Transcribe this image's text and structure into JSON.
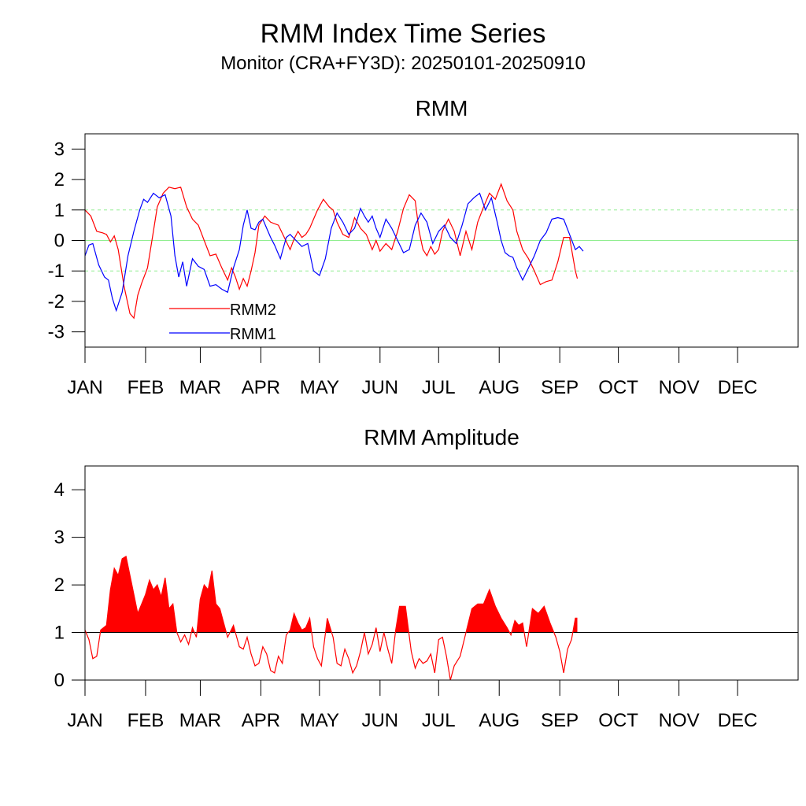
{
  "title": "RMM Index Time Series",
  "subtitle": "Monitor (CRA+FY3D): 20250101-20250910",
  "months": [
    "JAN",
    "FEB",
    "MAR",
    "APR",
    "MAY",
    "JUN",
    "JUL",
    "AUG",
    "SEP",
    "OCT",
    "NOV",
    "DEC"
  ],
  "colors": {
    "rmm1": "#0000ff",
    "rmm2": "#ff0000",
    "amplitude": "#ff0000",
    "zero_line": "#90ee90",
    "threshold_line": "#000000"
  },
  "chart_data": [
    {
      "type": "line",
      "title": "RMM",
      "x_unit": "day of year 2025 (1 = Jan 1)",
      "xlim": [
        1,
        366
      ],
      "ylim": [
        -3.5,
        3.5
      ],
      "yticks": [
        "3",
        "2",
        "1",
        "0",
        "-1",
        "-2",
        "-3"
      ],
      "yticks_values": [
        3,
        2,
        1,
        0,
        -1,
        -2,
        -3
      ],
      "reference_lines": [
        {
          "y": 0,
          "style": "solid",
          "color": "#90ee90"
        },
        {
          "y": 1,
          "style": "dashed",
          "color": "#90ee90"
        },
        {
          "y": -1,
          "style": "dashed",
          "color": "#90ee90"
        }
      ],
      "legend_placement": "lower-left",
      "series": [
        {
          "name": "RMM2",
          "color": "#ff0000",
          "x": [
            1,
            4,
            7,
            10,
            12,
            14,
            16,
            18,
            21,
            24,
            26,
            28,
            30,
            33,
            36,
            38,
            41,
            44,
            47,
            50,
            53,
            56,
            59,
            62,
            65,
            68,
            71,
            74,
            76,
            78,
            80,
            82,
            84,
            86,
            88,
            90,
            93,
            96,
            100,
            103,
            106,
            108,
            110,
            112,
            114,
            116,
            118,
            120,
            123,
            126,
            128,
            130,
            133,
            136,
            139,
            142,
            145,
            148,
            150,
            152,
            155,
            158,
            161,
            164,
            167,
            170,
            172,
            174,
            176,
            178,
            180,
            182,
            184,
            187,
            190,
            193,
            196,
            199,
            202,
            205,
            208,
            211,
            214,
            217,
            220,
            222,
            225,
            228,
            231,
            234,
            237,
            240,
            243,
            246,
            249,
            252,
            253
          ],
          "y": [
            1.0,
            0.8,
            0.3,
            0.25,
            0.2,
            -0.05,
            0.15,
            -0.3,
            -1.5,
            -2.4,
            -2.55,
            -1.8,
            -1.4,
            -0.9,
            0.3,
            1.1,
            1.55,
            1.75,
            1.7,
            1.75,
            1.1,
            0.7,
            0.5,
            0.0,
            -0.5,
            -0.45,
            -0.9,
            -1.3,
            -0.9,
            -1.2,
            -1.6,
            -1.25,
            -1.5,
            -1.0,
            -0.4,
            0.5,
            0.8,
            0.6,
            0.5,
            0.1,
            -0.3,
            0.05,
            0.3,
            0.1,
            0.2,
            0.4,
            0.7,
            1.0,
            1.35,
            1.1,
            1.0,
            0.6,
            0.2,
            0.1,
            0.75,
            0.4,
            0.2,
            -0.3,
            0.0,
            -0.35,
            -0.1,
            -0.3,
            0.3,
            1.05,
            1.5,
            1.3,
            0.3,
            -0.3,
            -0.5,
            -0.2,
            -0.45,
            -0.3,
            0.3,
            0.7,
            0.3,
            -0.5,
            0.3,
            -0.3,
            0.6,
            1.1,
            1.55,
            1.35,
            1.85,
            1.3,
            1.0,
            0.3,
            -0.3,
            -0.6,
            -1.0,
            -1.45,
            -1.35,
            -1.3,
            -0.7,
            0.1,
            0.1,
            -1.0,
            -1.25
          ]
        },
        {
          "name": "RMM1",
          "color": "#0000ff",
          "x": [
            1,
            3,
            5,
            8,
            11,
            13,
            15,
            17,
            20,
            23,
            26,
            29,
            31,
            33,
            36,
            39,
            42,
            45,
            47,
            49,
            51,
            53,
            56,
            59,
            62,
            65,
            68,
            71,
            74,
            77,
            80,
            82,
            84,
            86,
            88,
            90,
            92,
            94,
            96,
            98,
            101,
            104,
            106,
            109,
            112,
            115,
            118,
            121,
            124,
            127,
            130,
            133,
            136,
            139,
            142,
            144,
            146,
            148,
            150,
            152,
            155,
            158,
            161,
            164,
            167,
            170,
            173,
            176,
            179,
            182,
            185,
            188,
            191,
            194,
            197,
            200,
            203,
            206,
            209,
            212,
            214,
            216,
            218,
            220,
            222,
            225,
            228,
            231,
            234,
            237,
            240,
            243,
            246,
            249,
            252,
            254,
            256
          ],
          "y": [
            -0.5,
            -0.15,
            -0.1,
            -0.8,
            -1.2,
            -1.3,
            -1.9,
            -2.3,
            -1.7,
            -0.5,
            0.3,
            1.0,
            1.35,
            1.25,
            1.55,
            1.4,
            1.5,
            0.8,
            -0.5,
            -1.2,
            -0.7,
            -1.5,
            -0.6,
            -0.85,
            -0.95,
            -1.5,
            -1.45,
            -1.6,
            -1.7,
            -0.9,
            -0.3,
            0.5,
            1.0,
            0.4,
            0.35,
            0.6,
            0.7,
            0.4,
            0.1,
            -0.15,
            -0.6,
            0.1,
            0.2,
            0.0,
            -0.2,
            -0.1,
            -1.0,
            -1.15,
            -0.6,
            0.4,
            0.9,
            0.6,
            0.2,
            0.4,
            1.05,
            0.8,
            0.6,
            0.8,
            0.4,
            0.1,
            0.7,
            0.4,
            0.0,
            -0.4,
            -0.3,
            0.5,
            0.9,
            0.6,
            -0.1,
            0.3,
            0.5,
            0.1,
            -0.1,
            0.5,
            1.2,
            1.4,
            1.55,
            1.0,
            1.4,
            0.6,
            0.0,
            -0.4,
            -0.5,
            -0.55,
            -0.9,
            -1.3,
            -0.9,
            -0.5,
            0.0,
            0.25,
            0.7,
            0.75,
            0.7,
            0.2,
            -0.3,
            -0.2,
            -0.35
          ]
        }
      ]
    },
    {
      "type": "area",
      "title": "RMM Amplitude",
      "x_unit": "day of year 2025 (1 = Jan 1)",
      "xlim": [
        1,
        366
      ],
      "ylim": [
        0,
        4.5
      ],
      "yticks": [
        "4",
        "3",
        "2",
        "1",
        "0"
      ],
      "yticks_values": [
        4,
        3,
        2,
        1,
        0
      ],
      "threshold": 1,
      "fill_above_threshold_color": "#ff0000",
      "series": [
        {
          "name": "",
          "color": "#ff0000",
          "x": [
            1,
            3,
            5,
            7,
            9,
            12,
            14,
            16,
            18,
            20,
            22,
            25,
            28,
            30,
            32,
            34,
            36,
            38,
            40,
            42,
            44,
            46,
            48,
            50,
            52,
            54,
            56,
            58,
            60,
            62,
            64,
            66,
            68,
            70,
            72,
            74,
            77,
            80,
            82,
            84,
            86,
            88,
            90,
            92,
            94,
            96,
            98,
            100,
            102,
            104,
            106,
            108,
            110,
            112,
            114,
            116,
            118,
            120,
            122,
            125,
            128,
            130,
            132,
            134,
            136,
            138,
            140,
            142,
            144,
            146,
            148,
            150,
            152,
            154,
            156,
            158,
            160,
            162,
            165,
            168,
            170,
            172,
            174,
            176,
            178,
            180,
            182,
            184,
            186,
            188,
            190,
            193,
            196,
            199,
            202,
            205,
            208,
            211,
            214,
            217,
            219,
            221,
            223,
            225,
            227,
            230,
            233,
            236,
            239,
            242,
            244,
            246,
            248,
            250,
            252,
            253
          ],
          "y": [
            1.05,
            0.85,
            0.45,
            0.5,
            1.05,
            1.15,
            1.9,
            2.35,
            2.2,
            2.55,
            2.6,
            2.0,
            1.4,
            1.6,
            1.8,
            2.1,
            1.9,
            2.0,
            1.75,
            2.15,
            1.5,
            1.6,
            1.0,
            0.8,
            0.95,
            0.75,
            1.1,
            0.9,
            1.7,
            2.0,
            1.9,
            2.3,
            1.6,
            1.5,
            1.2,
            0.9,
            1.15,
            0.7,
            0.65,
            0.9,
            0.55,
            0.3,
            0.35,
            0.7,
            0.55,
            0.2,
            0.15,
            0.5,
            0.35,
            0.95,
            1.05,
            1.4,
            1.2,
            1.05,
            1.1,
            1.3,
            0.7,
            0.45,
            0.3,
            1.3,
            0.9,
            0.35,
            0.3,
            0.65,
            0.45,
            0.15,
            0.3,
            0.6,
            1.0,
            0.55,
            0.75,
            1.1,
            0.6,
            1.0,
            0.65,
            0.35,
            1.05,
            1.55,
            1.55,
            0.6,
            0.25,
            0.45,
            0.35,
            0.4,
            0.55,
            0.15,
            0.85,
            0.9,
            0.5,
            0.0,
            0.3,
            0.5,
            1.0,
            1.5,
            1.6,
            1.6,
            1.9,
            1.55,
            1.3,
            1.1,
            0.95,
            1.25,
            1.15,
            1.2,
            0.7,
            1.5,
            1.4,
            1.55,
            1.2,
            0.9,
            0.6,
            0.15,
            0.65,
            0.85,
            1.3,
            1.3
          ]
        }
      ]
    }
  ]
}
